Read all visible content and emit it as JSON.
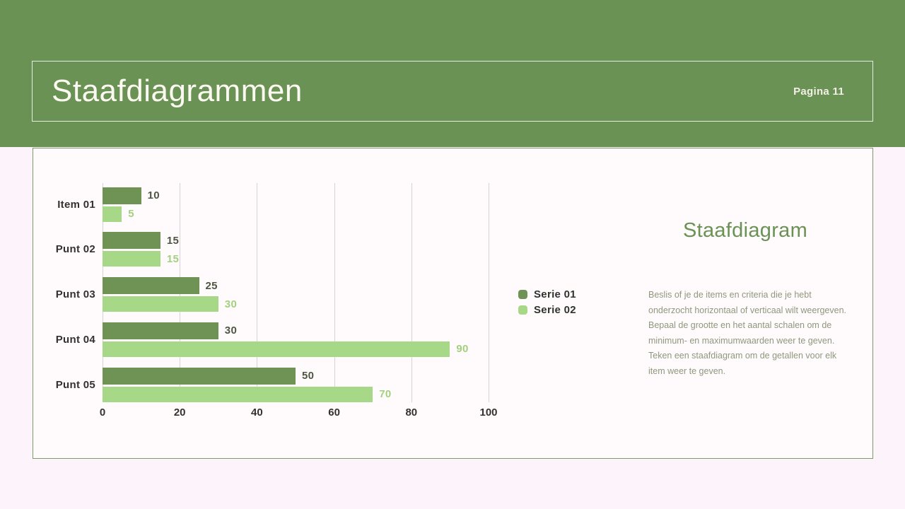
{
  "header": {
    "title": "Staafdiagrammen",
    "page_label": "Pagina 11"
  },
  "aside": {
    "heading": "Staafdiagram",
    "body": "Beslis of je de items en criteria die je hebt onderzocht horizontaal of verticaal wilt weergeven. Bepaal de grootte en het aantal schalen om de minimum- en maximumwaarden weer te geven. Teken een staafdiagram om de getallen voor elk item weer te geven."
  },
  "chart_data": {
    "type": "bar",
    "orientation": "horizontal",
    "title": "",
    "categories": [
      "Item 01",
      "Punt 02",
      "Punt 03",
      "Punt 04",
      "Punt 05"
    ],
    "series": [
      {
        "name": "Serie 01",
        "color": "#6f9355",
        "value_label_color": "#4d5741",
        "values": [
          10,
          15,
          25,
          30,
          50
        ]
      },
      {
        "name": "Serie 02",
        "color": "#a6d887",
        "value_label_color": "#a3d07e",
        "values": [
          5,
          15,
          30,
          90,
          70
        ]
      }
    ],
    "x_ticks": [
      0,
      20,
      40,
      60,
      80,
      100
    ],
    "xlim": [
      0,
      100
    ],
    "grid": true,
    "value_labels": true,
    "legend_position": "right-center"
  },
  "colors": {
    "band_green": "#6a9254",
    "page_background": "#fdf4fb",
    "panel_background": "#fffbfd",
    "panel_border": "#7d9b62",
    "gridline": "#d8d2d5",
    "axis_text": "#33312d",
    "heading_green": "#6a9254",
    "body_text": "#8f977c",
    "title_text": "#fbf9f1"
  }
}
